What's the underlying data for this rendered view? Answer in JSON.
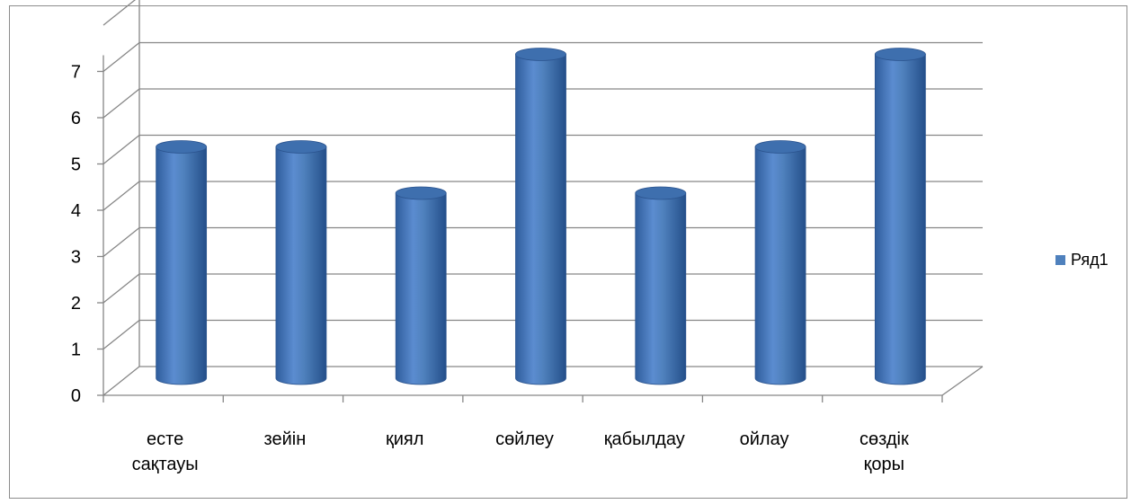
{
  "chart_data": {
    "type": "bar",
    "categories": [
      "есте сақтауы",
      "зейін",
      "қиял",
      "сөйлеу",
      "қабылдау",
      "ойлау",
      "сөздік қоры"
    ],
    "category_lines": [
      [
        "есте",
        "сақтауы"
      ],
      [
        "зейін"
      ],
      [
        "қиял"
      ],
      [
        "сөйлеу"
      ],
      [
        "қабылдау"
      ],
      [
        "ойлау"
      ],
      [
        "сөздік",
        "қоры"
      ]
    ],
    "series": [
      {
        "name": "Ряд1",
        "values": [
          5,
          5,
          4,
          7,
          4,
          5,
          7
        ]
      }
    ],
    "yticks": [
      "0",
      "1",
      "2",
      "3",
      "4",
      "5",
      "6",
      "7"
    ],
    "ylim": [
      0,
      8
    ],
    "grid": true,
    "style": "3d-cylinder",
    "legend_position": "right",
    "colors": {
      "bar": "#4f81bd",
      "bar_dark": "#2c5590",
      "bar_light": "#95b3d7",
      "grid": "#868686"
    }
  }
}
